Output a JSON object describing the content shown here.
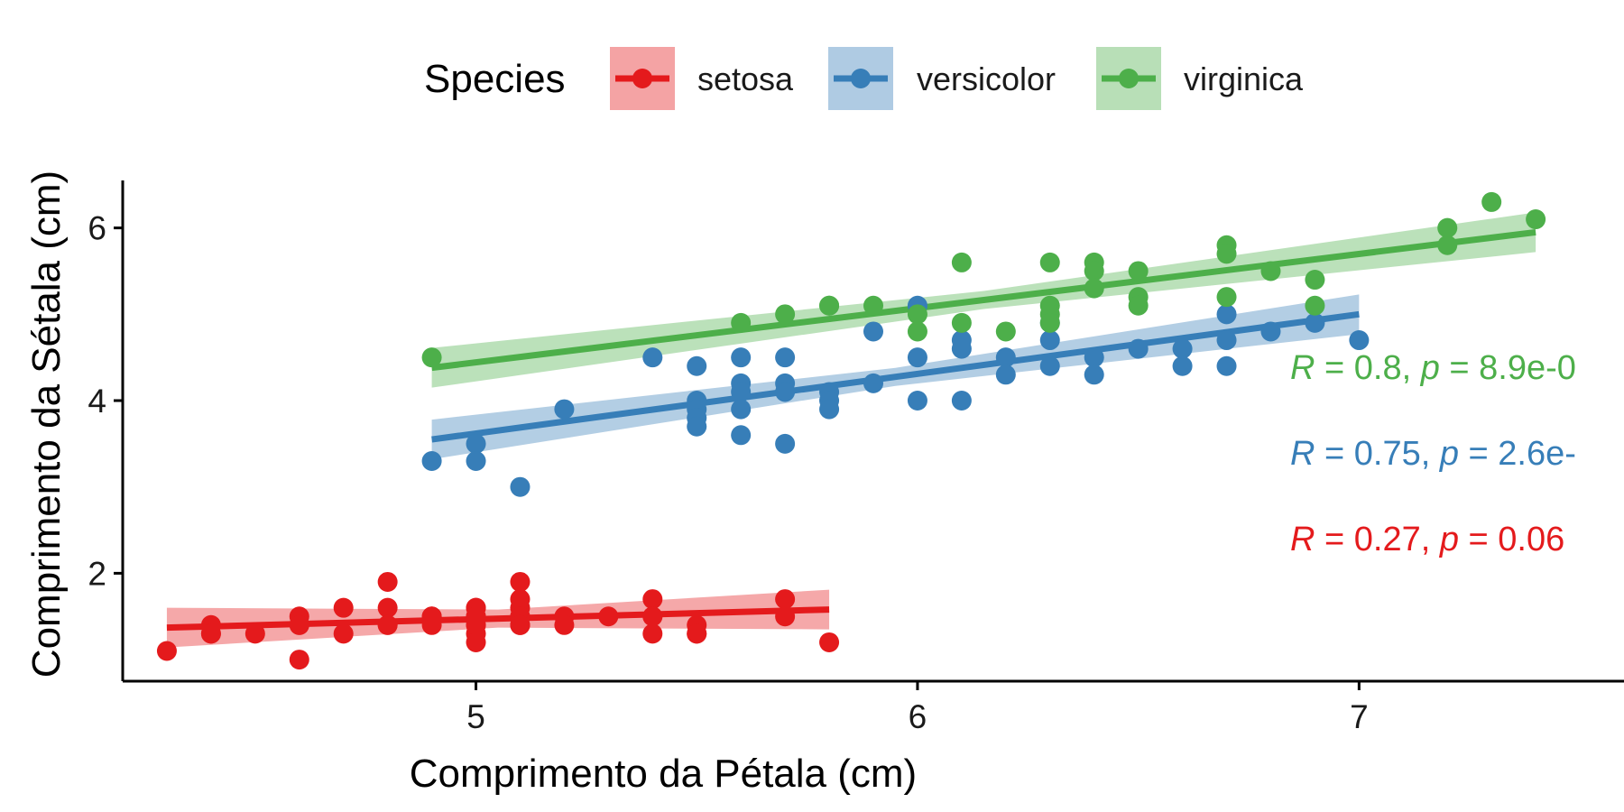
{
  "chart_data": {
    "type": "scatter",
    "xlabel": "Comprimento da Pétala (cm)",
    "ylabel": "Comprimento da Sétala (cm)",
    "xlim": [
      4.2,
      7.6
    ],
    "ylim": [
      0.75,
      6.55
    ],
    "xticks": [
      5,
      6,
      7
    ],
    "yticks": [
      2,
      4,
      6
    ],
    "grid": false,
    "legend": {
      "title": "Species",
      "position": "top"
    },
    "series": [
      {
        "name": "setosa",
        "color": "#E41A1C",
        "points": [
          [
            4.3,
            1.1
          ],
          [
            4.4,
            1.4
          ],
          [
            4.4,
            1.3
          ],
          [
            4.4,
            1.3
          ],
          [
            4.5,
            1.3
          ],
          [
            4.6,
            1.5
          ],
          [
            4.6,
            1.4
          ],
          [
            4.6,
            1.0
          ],
          [
            4.6,
            1.4
          ],
          [
            4.7,
            1.6
          ],
          [
            4.7,
            1.3
          ],
          [
            4.8,
            1.9
          ],
          [
            4.8,
            1.6
          ],
          [
            4.8,
            1.4
          ],
          [
            4.8,
            1.4
          ],
          [
            4.9,
            1.5
          ],
          [
            4.9,
            1.4
          ],
          [
            4.9,
            1.5
          ],
          [
            5.0,
            1.6
          ],
          [
            5.0,
            1.5
          ],
          [
            5.0,
            1.4
          ],
          [
            5.0,
            1.3
          ],
          [
            5.0,
            1.2
          ],
          [
            5.0,
            1.6
          ],
          [
            5.0,
            1.4
          ],
          [
            5.0,
            1.5
          ],
          [
            5.1,
            1.9
          ],
          [
            5.1,
            1.7
          ],
          [
            5.1,
            1.6
          ],
          [
            5.1,
            1.5
          ],
          [
            5.1,
            1.4
          ],
          [
            5.1,
            1.5
          ],
          [
            5.1,
            1.4
          ],
          [
            5.1,
            1.4
          ],
          [
            5.2,
            1.5
          ],
          [
            5.2,
            1.4
          ],
          [
            5.3,
            1.5
          ],
          [
            5.4,
            1.7
          ],
          [
            5.4,
            1.5
          ],
          [
            5.4,
            1.3
          ],
          [
            5.4,
            1.5
          ],
          [
            5.5,
            1.4
          ],
          [
            5.5,
            1.3
          ],
          [
            5.5,
            1.3
          ],
          [
            5.7,
            1.7
          ],
          [
            5.7,
            1.5
          ],
          [
            5.8,
            1.2
          ]
        ],
        "fit": {
          "x": [
            4.3,
            5.8
          ],
          "y": [
            1.37,
            1.58
          ]
        },
        "annotation": {
          "r": "0.27",
          "p": "0.06"
        }
      },
      {
        "name": "versicolor",
        "color": "#377EB8",
        "points": [
          [
            4.9,
            3.3
          ],
          [
            5.0,
            3.5
          ],
          [
            5.0,
            3.3
          ],
          [
            5.1,
            3.0
          ],
          [
            5.2,
            3.9
          ],
          [
            5.4,
            4.5
          ],
          [
            5.5,
            4.4
          ],
          [
            5.5,
            4.0
          ],
          [
            5.5,
            3.9
          ],
          [
            5.5,
            3.8
          ],
          [
            5.5,
            3.7
          ],
          [
            5.6,
            4.5
          ],
          [
            5.6,
            4.2
          ],
          [
            5.6,
            4.1
          ],
          [
            5.6,
            3.9
          ],
          [
            5.6,
            3.6
          ],
          [
            5.7,
            4.5
          ],
          [
            5.7,
            4.2
          ],
          [
            5.7,
            4.1
          ],
          [
            5.7,
            3.5
          ],
          [
            5.8,
            4.1
          ],
          [
            5.8,
            4.0
          ],
          [
            5.8,
            3.9
          ],
          [
            5.9,
            4.8
          ],
          [
            5.9,
            4.2
          ],
          [
            6.0,
            5.1
          ],
          [
            6.0,
            4.5
          ],
          [
            6.0,
            4.0
          ],
          [
            6.1,
            4.7
          ],
          [
            6.1,
            4.6
          ],
          [
            6.1,
            4.0
          ],
          [
            6.2,
            4.5
          ],
          [
            6.2,
            4.3
          ],
          [
            6.3,
            4.9
          ],
          [
            6.3,
            4.7
          ],
          [
            6.3,
            4.4
          ],
          [
            6.4,
            4.5
          ],
          [
            6.4,
            4.3
          ],
          [
            6.5,
            4.6
          ],
          [
            6.6,
            4.6
          ],
          [
            6.6,
            4.4
          ],
          [
            6.7,
            5.0
          ],
          [
            6.7,
            4.7
          ],
          [
            6.7,
            4.4
          ],
          [
            6.8,
            4.8
          ],
          [
            6.9,
            4.9
          ],
          [
            7.0,
            4.7
          ]
        ],
        "fit": {
          "x": [
            4.9,
            7.0
          ],
          "y": [
            3.55,
            5.0
          ]
        },
        "annotation": {
          "r": "0.75",
          "p": "2.6e-"
        }
      },
      {
        "name": "virginica",
        "color": "#4DAF4A",
        "points": [
          [
            4.9,
            4.5
          ],
          [
            5.6,
            4.9
          ],
          [
            5.7,
            5.0
          ],
          [
            5.8,
            5.1
          ],
          [
            5.8,
            5.1
          ],
          [
            5.9,
            5.1
          ],
          [
            6.0,
            5.0
          ],
          [
            6.0,
            4.8
          ],
          [
            6.1,
            5.6
          ],
          [
            6.1,
            4.9
          ],
          [
            6.2,
            4.8
          ],
          [
            6.3,
            5.6
          ],
          [
            6.3,
            5.1
          ],
          [
            6.3,
            5.0
          ],
          [
            6.3,
            4.9
          ],
          [
            6.4,
            5.6
          ],
          [
            6.4,
            5.5
          ],
          [
            6.4,
            5.3
          ],
          [
            6.5,
            5.5
          ],
          [
            6.5,
            5.2
          ],
          [
            6.5,
            5.1
          ],
          [
            6.7,
            5.8
          ],
          [
            6.7,
            5.7
          ],
          [
            6.7,
            5.2
          ],
          [
            6.8,
            5.5
          ],
          [
            6.9,
            5.4
          ],
          [
            6.9,
            5.1
          ],
          [
            7.2,
            6.0
          ],
          [
            7.2,
            5.8
          ],
          [
            7.3,
            6.3
          ],
          [
            7.4,
            6.1
          ]
        ],
        "fit": {
          "x": [
            4.9,
            7.4
          ],
          "y": [
            4.38,
            5.95
          ]
        },
        "annotation": {
          "r": "0.8",
          "p": "8.9e-0"
        }
      }
    ]
  }
}
